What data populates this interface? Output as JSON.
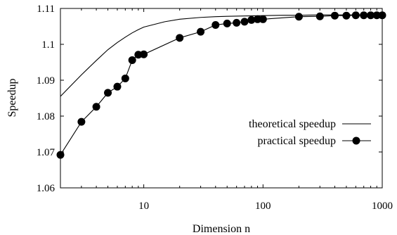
{
  "chart_data": {
    "type": "line",
    "xlabel": "Dimension n",
    "ylabel": "Speedup",
    "x_scale": "log",
    "xlim": [
      2,
      1000
    ],
    "ylim": [
      1.06,
      1.11
    ],
    "x_ticks": [
      10,
      100,
      1000
    ],
    "x_tick_labels": [
      "10",
      "100",
      "1000"
    ],
    "y_ticks": [
      1.06,
      1.07,
      1.08,
      1.09,
      1.1,
      1.11
    ],
    "y_tick_labels": [
      "1.06",
      "1.07",
      "1.08",
      "1.09",
      "1.1",
      "1.11"
    ],
    "legend_position": "center-right",
    "series": [
      {
        "name": "theoretical speedup",
        "style": "line",
        "x": [
          2,
          3,
          4,
          5,
          6,
          7,
          8,
          9,
          10,
          15,
          20,
          30,
          40,
          50,
          70,
          100,
          150,
          200,
          300,
          500,
          700,
          1000
        ],
        "y": [
          1.0855,
          1.0915,
          1.0955,
          1.0985,
          1.1005,
          1.102,
          1.1032,
          1.1041,
          1.1048,
          1.1063,
          1.107,
          1.1075,
          1.1077,
          1.1078,
          1.1079,
          1.108,
          1.1081,
          1.1081,
          1.1082,
          1.1082,
          1.1082,
          1.1082
        ]
      },
      {
        "name": "practical speedup",
        "style": "line-marker",
        "x": [
          2,
          3,
          4,
          5,
          6,
          7,
          8,
          9,
          10,
          20,
          30,
          40,
          50,
          60,
          70,
          80,
          90,
          100,
          200,
          300,
          400,
          500,
          600,
          700,
          800,
          900,
          1000
        ],
        "y": [
          1.0692,
          1.0784,
          1.0826,
          1.0865,
          1.0882,
          1.0905,
          1.0956,
          1.0971,
          1.0972,
          1.1018,
          1.1035,
          1.1054,
          1.1058,
          1.106,
          1.1063,
          1.1068,
          1.107,
          1.107,
          1.1077,
          1.1078,
          1.108,
          1.108,
          1.1081,
          1.1081,
          1.1081,
          1.1081,
          1.1081
        ]
      }
    ]
  },
  "colors": {
    "line": "#000000",
    "background": "#ffffff"
  }
}
